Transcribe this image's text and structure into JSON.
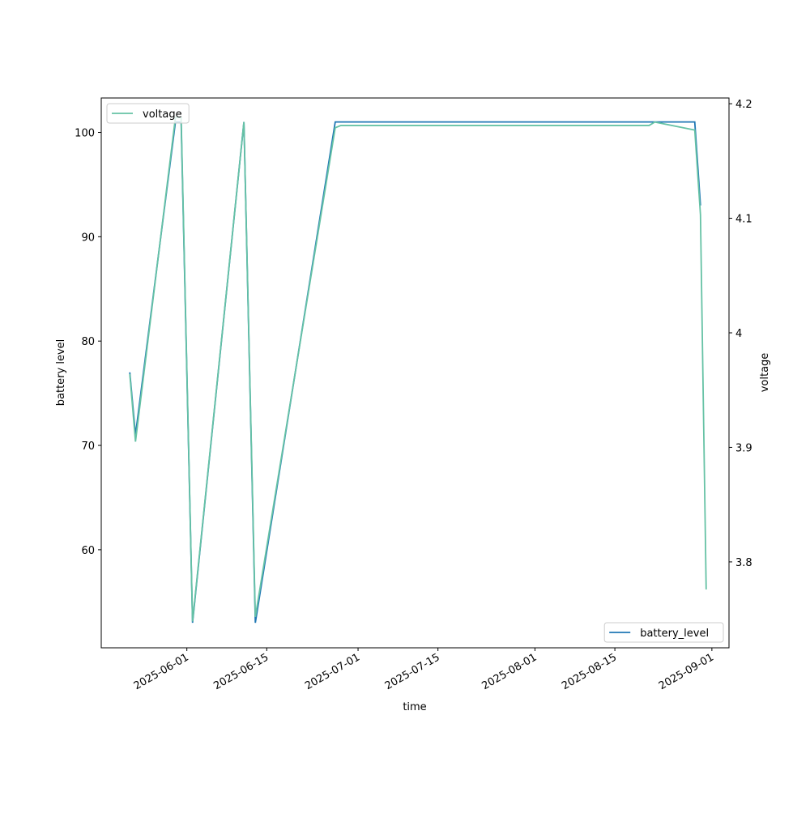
{
  "chart_data": {
    "type": "line",
    "xlabel": "time",
    "ylabel": "battery level",
    "y2label": "voltage",
    "xlim": [
      "2025-05-17",
      "2025-09-04"
    ],
    "xticks": [
      "2025-06-01",
      "2025-06-15",
      "2025-07-01",
      "2025-07-15",
      "2025-08-01",
      "2025-08-15",
      "2025-09-01"
    ],
    "ylim": [
      50.6,
      103.3
    ],
    "yticks": [
      60,
      70,
      80,
      90,
      100
    ],
    "y2lim": [
      3.725,
      4.205
    ],
    "y2ticks": [
      3.8,
      3.9,
      4.0,
      4.1,
      4.2
    ],
    "grid": false,
    "series": [
      {
        "name": "battery_level",
        "color": "#1f77b4",
        "axis": "y",
        "legend": "lower right",
        "x": [
          "2025-05-22",
          "2025-05-23",
          "2025-05-30",
          "2025-05-31",
          "2025-06-02",
          "2025-06-11",
          "2025-06-13",
          "2025-06-27",
          "2025-08-29",
          "2025-08-30"
        ],
        "values": [
          77,
          71,
          101,
          101,
          53,
          101,
          53,
          101,
          101,
          93
        ]
      },
      {
        "name": "voltage",
        "color": "#66c2a5",
        "axis": "y2",
        "legend": "upper left",
        "x": [
          "2025-05-22",
          "2025-05-23",
          "2025-05-30",
          "2025-05-31",
          "2025-06-02",
          "2025-06-11",
          "2025-06-13",
          "2025-06-27",
          "2025-06-28",
          "2025-08-21",
          "2025-08-22",
          "2025-08-29",
          "2025-08-30",
          "2025-08-31"
        ],
        "values": [
          3.964,
          3.905,
          4.188,
          4.188,
          3.748,
          4.184,
          3.752,
          4.179,
          4.181,
          4.181,
          4.184,
          4.177,
          4.103,
          3.776
        ]
      }
    ]
  }
}
